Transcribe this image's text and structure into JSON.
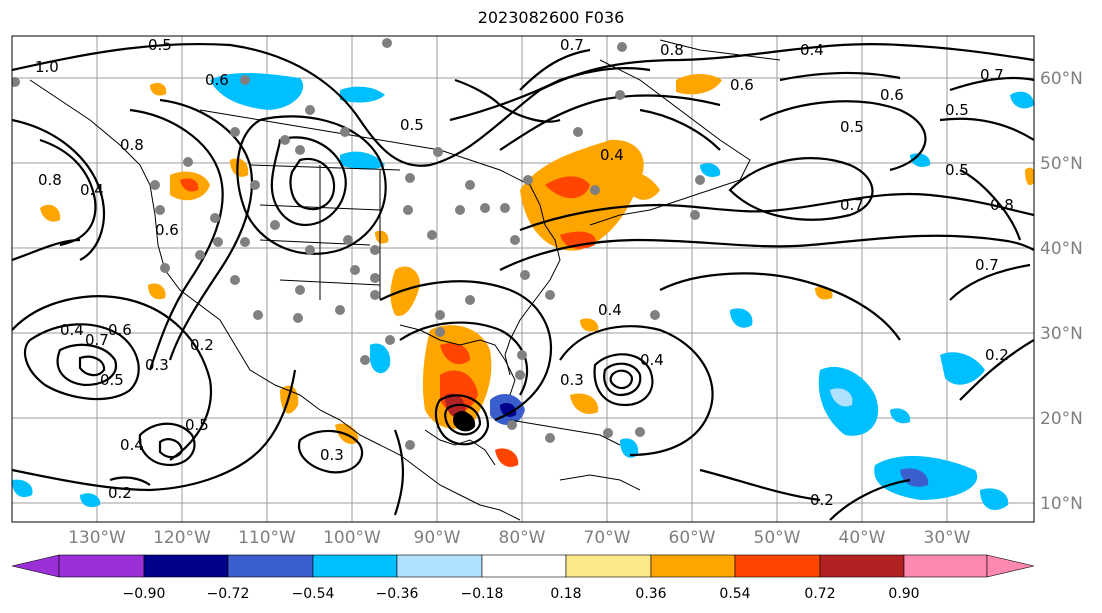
{
  "title": "2023082600 F036",
  "longitude_labels": [
    "130°W",
    "120°W",
    "110°W",
    "100°W",
    "90°W",
    "80°W",
    "70°W",
    "60°W",
    "50°W",
    "40°W",
    "30°W"
  ],
  "latitude_labels": [
    "60°N",
    "50°N",
    "40°N",
    "30°N",
    "20°N",
    "10°N"
  ],
  "colorbar": {
    "ticks": [
      "−0.90",
      "−0.72",
      "−0.54",
      "−0.36",
      "−0.18",
      "0.18",
      "0.36",
      "0.54",
      "0.72",
      "0.90"
    ],
    "colors": [
      "#9b30d8",
      "#00008b",
      "#3a5fcd",
      "#00bfff",
      "#b0e2ff",
      "#ffffff",
      "#fbe88a",
      "#ffa500",
      "#ff4500",
      "#b22222",
      "#ff88b0"
    ]
  },
  "contour_labels": [
    "1.0",
    "0.5",
    "0.4",
    "0.6",
    "0.5",
    "0.8",
    "0.7",
    "0.6",
    "0.5",
    "0.4",
    "0.8",
    "0.4",
    "0.5",
    "0.6",
    "0.8",
    "0.7",
    "0.5",
    "0.4",
    "0.7",
    "0.6",
    "0.3",
    "0.2",
    "0.4",
    "0.5",
    "0.3",
    "0.2",
    "0.7",
    "0.4",
    "0.2",
    "0.2",
    "0.8",
    "0.7",
    "0.6",
    "0.5",
    "0.4",
    "0.3"
  ],
  "station_marker_color": "#808080"
}
